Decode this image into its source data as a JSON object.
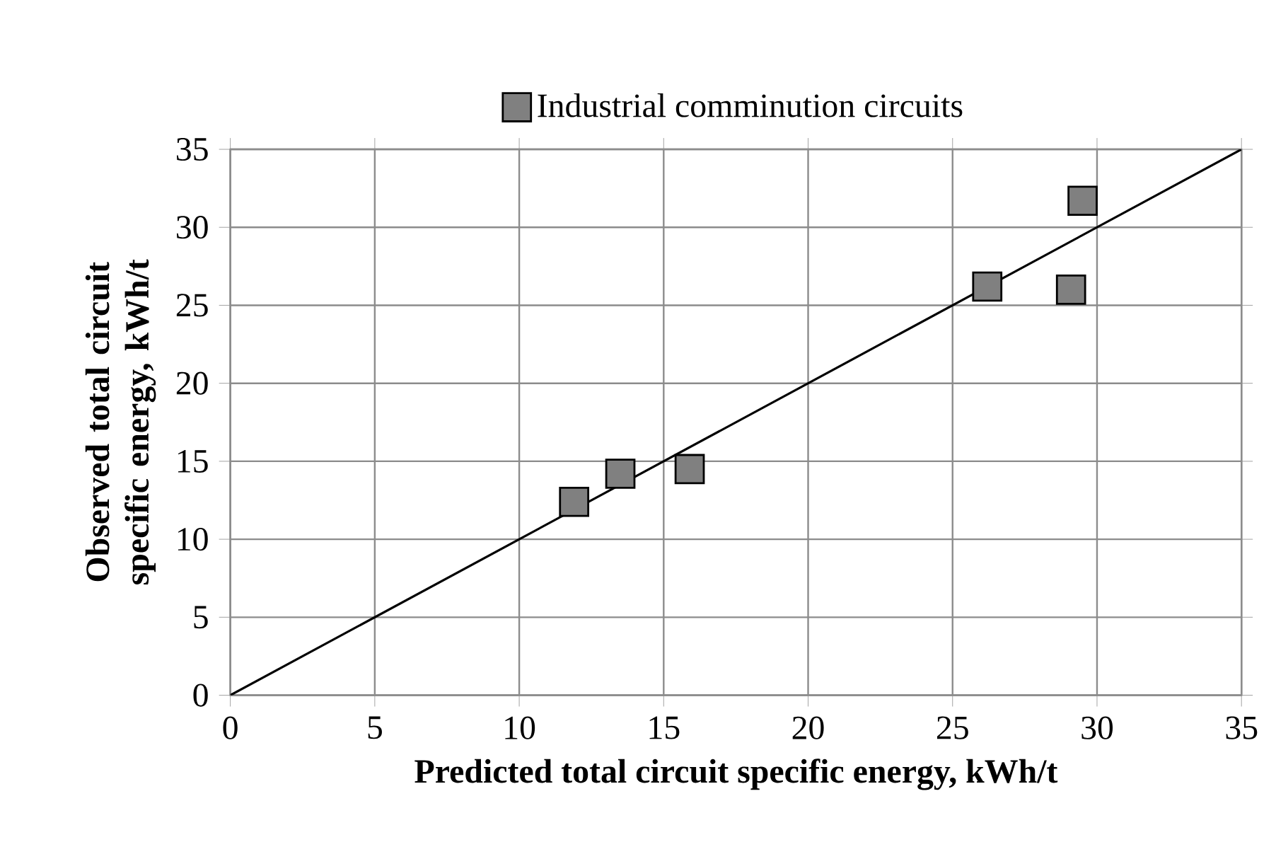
{
  "chart_data": {
    "type": "scatter",
    "xlabel": "Predicted total circuit specific energy, kWh/t",
    "ylabel": "Observed total circuit specific energy, kWh/t",
    "series": [
      {
        "name": "Industrial comminution circuits",
        "color": "#808080",
        "marker": "square",
        "x": [
          11.9,
          13.5,
          15.9,
          26.2,
          29.1,
          29.5
        ],
        "values": [
          12.4,
          14.2,
          14.5,
          26.2,
          26.0,
          31.7
        ]
      },
      {
        "type": "line",
        "color": "#000000",
        "marker": "none",
        "x": [
          0,
          35
        ],
        "values": [
          0,
          35
        ]
      }
    ],
    "xlim": [
      0,
      35
    ],
    "ylim": [
      0,
      35
    ],
    "xticks": [
      0,
      5,
      10,
      15,
      20,
      25,
      30,
      35
    ],
    "yticks": [
      0,
      5,
      10,
      15,
      20,
      25,
      30,
      35
    ],
    "grid": true,
    "legend": "top"
  }
}
